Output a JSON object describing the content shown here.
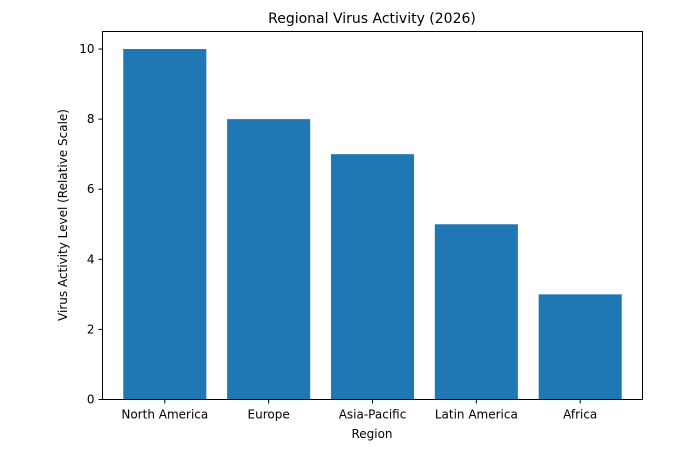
{
  "chart_data": {
    "type": "bar",
    "title": "Regional Virus Activity (2026)",
    "xlabel": "Region",
    "ylabel": "Virus Activity Level (Relative Scale)",
    "categories": [
      "North America",
      "Europe",
      "Asia-Pacific",
      "Latin America",
      "Africa"
    ],
    "values": [
      10,
      8,
      7,
      5,
      3
    ],
    "ylim": [
      0,
      10.5
    ],
    "yticks": [
      0,
      2,
      4,
      6,
      8,
      10
    ],
    "grid": false,
    "bar_color": "#1f77b4"
  }
}
